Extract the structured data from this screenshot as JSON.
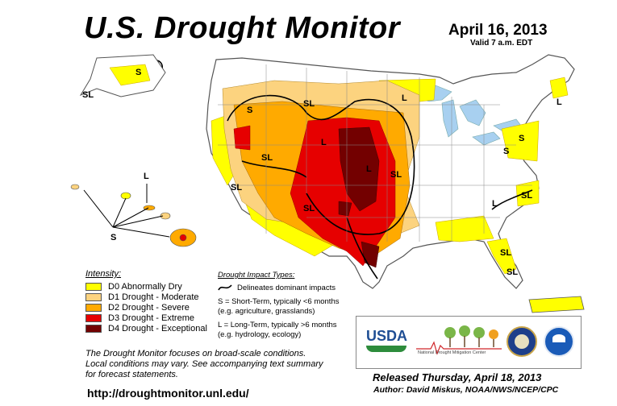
{
  "header": {
    "title": "U.S. Drought Monitor",
    "date": "April 16, 2013",
    "valid": "Valid 7 a.m. EDT"
  },
  "map": {
    "impact_labels": [
      "S",
      "SL",
      "SL",
      "SL",
      "L",
      "S",
      "SL",
      "L",
      "SL",
      "L",
      "SL",
      "L",
      "S",
      "S",
      "SL",
      "L",
      "SL",
      "SL",
      "L",
      "S"
    ]
  },
  "legend": {
    "title": "Intensity:",
    "items": [
      {
        "label": "D0 Abnormally Dry",
        "color": "#ffff00"
      },
      {
        "label": "D1 Drought - Moderate",
        "color": "#fcd37f"
      },
      {
        "label": "D2 Drought - Severe",
        "color": "#ffaa00"
      },
      {
        "label": "D3 Drought - Extreme",
        "color": "#e60000"
      },
      {
        "label": "D4 Drought - Exceptional",
        "color": "#730000"
      }
    ]
  },
  "impacts": {
    "title": "Drought Impact Types:",
    "delineates": "Delineates dominant impacts",
    "short_term_1": "S = Short-Term, typically <6 months",
    "short_term_2": "(e.g. agriculture, grasslands)",
    "long_term_1": "L = Long-Term, typically >6 months",
    "long_term_2": "(e.g. hydrology, ecology)"
  },
  "note": {
    "line1": "The Drought Monitor focuses on broad-scale conditions.",
    "line2": "Local conditions may vary. See accompanying text summary",
    "line3": "for forecast statements."
  },
  "footer": {
    "url": "http://droughtmonitor.unl.edu/",
    "released": "Released Thursday, April 18, 2013",
    "author": "Author: David Miskus, NOAA/NWS/NCEP/CPC"
  },
  "logos": {
    "usda": "USDA",
    "ndmc": "National Drought Mitigation Center"
  }
}
